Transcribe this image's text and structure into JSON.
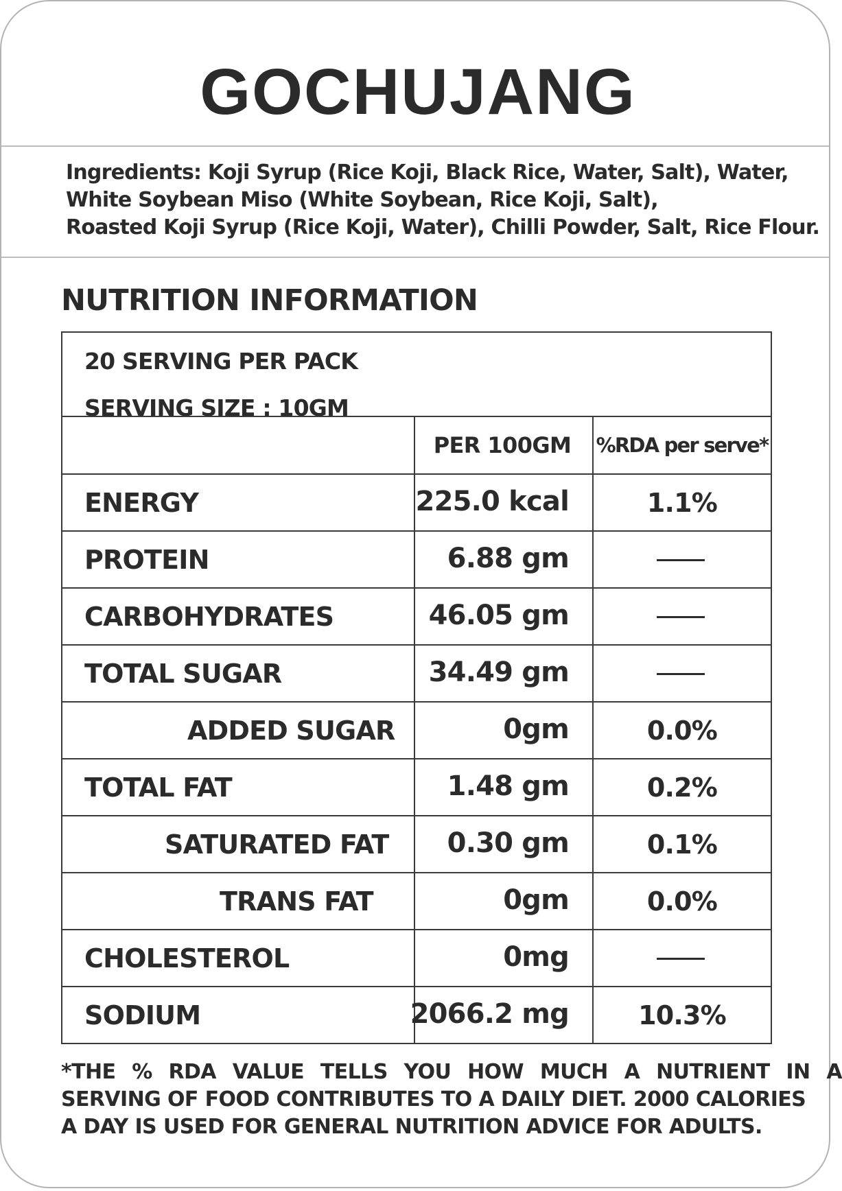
{
  "product": {
    "title": "GOCHUJANG"
  },
  "ingredients": {
    "lines": [
      "Ingredients: Koji Syrup (Rice Koji, Black Rice, Water, Salt), Water,",
      "White Soybean Miso (White Soybean, Rice Koji, Salt),",
      "Roasted Koji Syrup (Rice Koji, Water), Chilli Powder, Salt, Rice Flour."
    ]
  },
  "nutrition": {
    "heading": "NUTRITION INFORMATION",
    "servings_per_pack": "20 SERVING PER PACK",
    "serving_size": "SERVING SIZE : 10GM",
    "columns": {
      "per_100": "PER 100GM",
      "rda": "%RDA per serve*"
    },
    "rows": [
      {
        "name": "ENERGY",
        "value": "225.0 kcal",
        "rda": "1.1%",
        "indent": 0
      },
      {
        "name": "PROTEIN",
        "value": "6.88 gm",
        "rda": "",
        "indent": 0
      },
      {
        "name": "CARBOHYDRATES",
        "value": "46.05 gm",
        "rda": "",
        "indent": 0
      },
      {
        "name": "TOTAL SUGAR",
        "value": "34.49 gm",
        "rda": "",
        "indent": 0
      },
      {
        "name": "ADDED SUGAR",
        "value": "0gm",
        "rda": "0.0%",
        "indent": 2
      },
      {
        "name": "TOTAL FAT",
        "value": "1.48 gm",
        "rda": "0.2%",
        "indent": 0
      },
      {
        "name": "SATURATED FAT",
        "value": "0.30 gm",
        "rda": "0.1%",
        "indent": 1
      },
      {
        "name": "TRANS FAT",
        "value": "0gm",
        "rda": "0.0%",
        "indent": 3
      },
      {
        "name": "CHOLESTEROL",
        "value": "0mg",
        "rda": "",
        "indent": 0
      },
      {
        "name": "SODIUM",
        "value": "2066.2 mg",
        "rda": "10.3%",
        "indent": 0
      }
    ]
  },
  "footnote": {
    "lines": [
      "*THE % RDA VALUE TELLS YOU HOW MUCH A NUTRIENT IN A",
      "SERVING OF FOOD CONTRIBUTES TO A DAILY DIET. 2000 CALORIES",
      "A DAY IS USED FOR GENERAL NUTRITION ADVICE FOR ADULTS."
    ]
  }
}
